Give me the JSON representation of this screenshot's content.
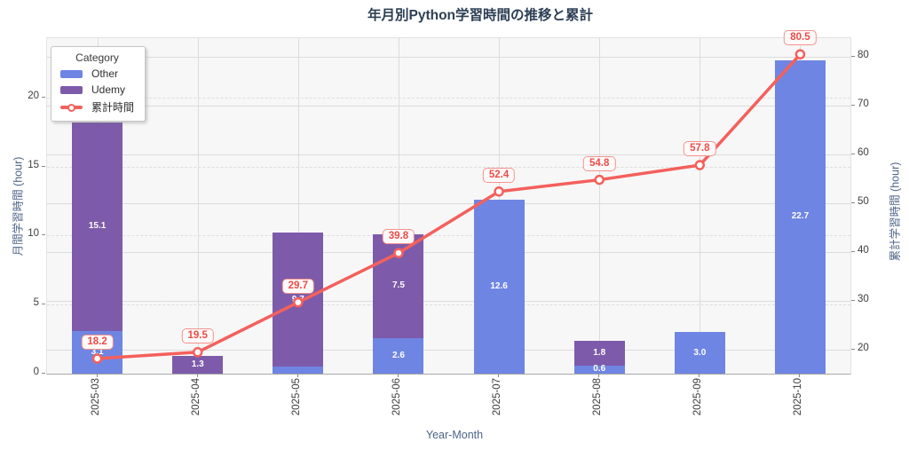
{
  "title": "年月別Python学習時間の推移と累計",
  "chart_data": {
    "type": "bar",
    "stacked": true,
    "title": "年月別Python学習時間の推移と累計",
    "categories": [
      "2025-03",
      "2025-04",
      "2025-05",
      "2025-06",
      "2025-07",
      "2025-08",
      "2025-09",
      "2025-10"
    ],
    "series": [
      {
        "name": "Other",
        "color": "#6f85e3",
        "values": [
          3.1,
          0,
          0.5,
          2.6,
          12.6,
          0.6,
          3.0,
          22.7
        ]
      },
      {
        "name": "Udemy",
        "color": "#7d5baa",
        "values": [
          15.1,
          1.3,
          9.7,
          7.5,
          0,
          1.8,
          0,
          0
        ]
      }
    ],
    "line_overlay": {
      "name": "累計時間",
      "color": "#f4605c",
      "axis": "right",
      "values": [
        18.2,
        19.5,
        29.7,
        39.8,
        52.4,
        54.8,
        57.8,
        80.5
      ]
    },
    "xlabel": "Year-Month",
    "ylabel_left": "月間学習時間 (hour)",
    "ylabel_right": "累計学習時間 (hour)",
    "left_ticks": [
      0,
      5,
      10,
      15,
      20
    ],
    "right_ticks": [
      20,
      30,
      40,
      50,
      60,
      70,
      80
    ],
    "left_range": [
      0,
      24.3
    ],
    "right_range": [
      15.1,
      83.8
    ],
    "legend_title": "Category",
    "legend_position": "upper left",
    "grid": true
  },
  "colors": {
    "title": "#2d3e54",
    "axis_label": "#4e6488",
    "tick_label": "#3d3d3d",
    "plot_bg": "#f7f7f7",
    "grid_solid": "#dcdcdc",
    "grid_dashed": "#dedede",
    "annotation_text": "#ee4b46",
    "annotation_border": "#f5938c",
    "annotation_bg": "#fffafa",
    "bar_label": "#ffffff"
  }
}
